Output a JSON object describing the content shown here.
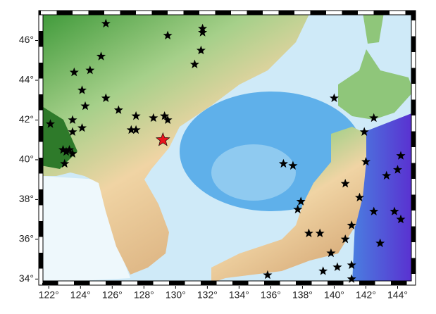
{
  "chart_data": {
    "type": "map",
    "xlim": [
      121.5,
      145
    ],
    "ylim": [
      33.8,
      47.4
    ],
    "xticks": [
      {
        "value": 122,
        "label": "122°"
      },
      {
        "value": 124,
        "label": "124°"
      },
      {
        "value": 126,
        "label": "126°"
      },
      {
        "value": 128,
        "label": "128°"
      },
      {
        "value": 130,
        "label": "130°"
      },
      {
        "value": 132,
        "label": "132°"
      },
      {
        "value": 134,
        "label": "134°"
      },
      {
        "value": 136,
        "label": "136°"
      },
      {
        "value": 138,
        "label": "138°"
      },
      {
        "value": 140,
        "label": "140°"
      },
      {
        "value": 142,
        "label": "142°"
      },
      {
        "value": 144,
        "label": "144°"
      }
    ],
    "yticks": [
      {
        "value": 34,
        "label": "34°"
      },
      {
        "value": 36,
        "label": "36°"
      },
      {
        "value": 38,
        "label": "38°"
      },
      {
        "value": 40,
        "label": "40°"
      },
      {
        "value": 42,
        "label": "42°"
      },
      {
        "value": 44,
        "label": "44°"
      },
      {
        "value": 46,
        "label": "46°"
      }
    ],
    "series": [
      {
        "color": "#000000",
        "x": [
          125.6,
          129.5,
          131.7,
          131.7,
          131.6,
          131.2,
          125.3,
          124.6,
          123.6,
          124.1,
          125.6,
          124.3,
          126.4,
          122.1,
          123.5,
          124.1,
          123.5,
          127.5,
          128.6,
          127.2,
          127.5,
          129.3,
          129.5,
          123.1,
          122.9,
          123.3,
          123.5,
          123.0,
          140.0,
          142.5,
          141.9,
          136.8,
          137.4,
          142.0,
          140.7,
          141.6,
          143.3,
          144.2,
          144.0,
          143.8,
          144.2,
          142.5,
          141.1,
          140.7,
          139.8,
          139.1,
          138.4,
          137.9,
          137.7,
          140.2,
          141.1,
          142.9,
          139.3,
          135.8,
          141.1
        ],
        "values": [
          46.85,
          46.25,
          46.6,
          46.4,
          45.5,
          44.8,
          45.2,
          44.5,
          44.4,
          43.5,
          43.1,
          42.7,
          42.5,
          41.8,
          42.0,
          41.6,
          41.4,
          42.2,
          42.1,
          41.5,
          41.5,
          42.2,
          42.0,
          40.4,
          40.5,
          40.5,
          40.3,
          39.8,
          43.1,
          42.1,
          41.4,
          39.8,
          39.7,
          39.9,
          38.8,
          38.1,
          39.2,
          40.2,
          39.5,
          37.4,
          37.0,
          37.4,
          36.7,
          36.0,
          35.3,
          36.3,
          36.3,
          37.9,
          37.5,
          34.6,
          34.7,
          35.8,
          34.4,
          34.2,
          34.0
        ]
      },
      {
        "color": "#e8141e",
        "x": [
          129.2
        ],
        "values": [
          41.0
        ]
      }
    ]
  }
}
